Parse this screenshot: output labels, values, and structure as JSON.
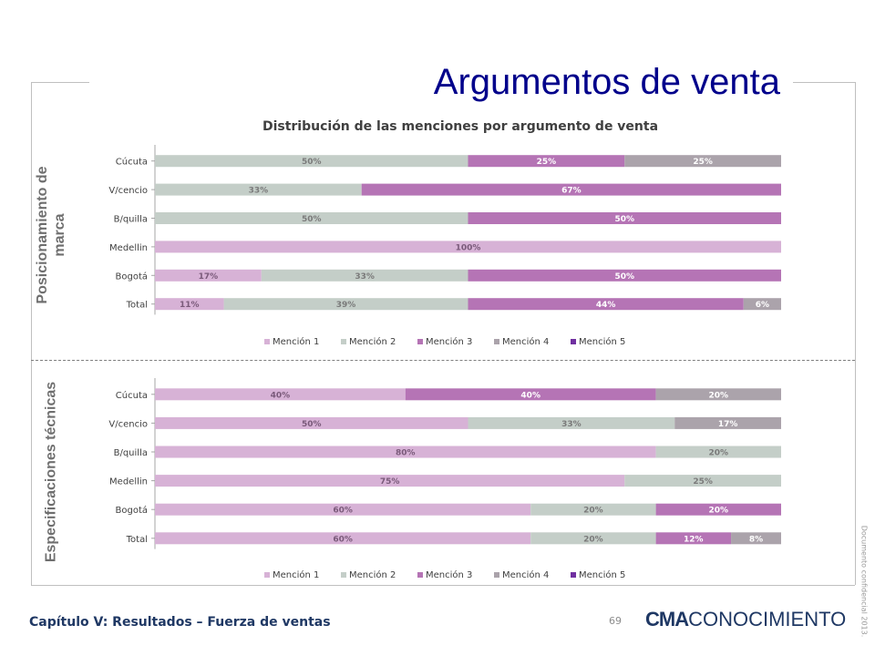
{
  "slide": {
    "title": "Argumentos de venta",
    "footer": "Capítulo V: Resultados – Fuerza de ventas",
    "page_number": "69",
    "logo_bold": "CMA",
    "logo_light": "CONOCIMIENTO",
    "confidential": "Documento confidencial 2013."
  },
  "sections": {
    "top": "Posicionamiento de marca",
    "bottom": "Especificaciones técnicas"
  },
  "colors": {
    "Mención 1": "#d7b2d6",
    "Mención 2": "#c4cec8",
    "Mención 3": "#b574b5",
    "Mención 4": "#aba3ab",
    "Mención 5": "#7030a0"
  },
  "chart_data": [
    {
      "type": "bar",
      "orientation": "horizontal",
      "stacked": "percent",
      "title": "Distribución de las menciones por argumento de venta",
      "categories": [
        "Cúcuta",
        "V/cencio",
        "B/quilla",
        "Medellin",
        "Bogotá",
        "Total"
      ],
      "series": [
        {
          "name": "Mención 1",
          "values": [
            0,
            0,
            0,
            100,
            17,
            11
          ]
        },
        {
          "name": "Mención 2",
          "values": [
            50,
            33,
            50,
            0,
            33,
            39
          ]
        },
        {
          "name": "Mención 3",
          "values": [
            25,
            67,
            50,
            0,
            50,
            44
          ]
        },
        {
          "name": "Mención 4",
          "values": [
            25,
            0,
            0,
            0,
            0,
            6
          ]
        },
        {
          "name": "Mención 5",
          "values": [
            0,
            0,
            0,
            0,
            0,
            0
          ]
        }
      ],
      "legend": "bottom"
    },
    {
      "type": "bar",
      "orientation": "horizontal",
      "stacked": "percent",
      "title": "",
      "categories": [
        "Cúcuta",
        "V/cencio",
        "B/quilla",
        "Medellin",
        "Bogotá",
        "Total"
      ],
      "series": [
        {
          "name": "Mención 1",
          "values": [
            40,
            50,
            80,
            75,
            60,
            60
          ]
        },
        {
          "name": "Mención 2",
          "values": [
            0,
            33,
            20,
            25,
            20,
            20
          ]
        },
        {
          "name": "Mención 3",
          "values": [
            40,
            0,
            0,
            0,
            20,
            12
          ]
        },
        {
          "name": "Mención 4",
          "values": [
            20,
            17,
            0,
            0,
            0,
            8
          ]
        },
        {
          "name": "Mención 5",
          "values": [
            0,
            0,
            0,
            0,
            0,
            0
          ]
        }
      ],
      "legend": "bottom"
    }
  ]
}
